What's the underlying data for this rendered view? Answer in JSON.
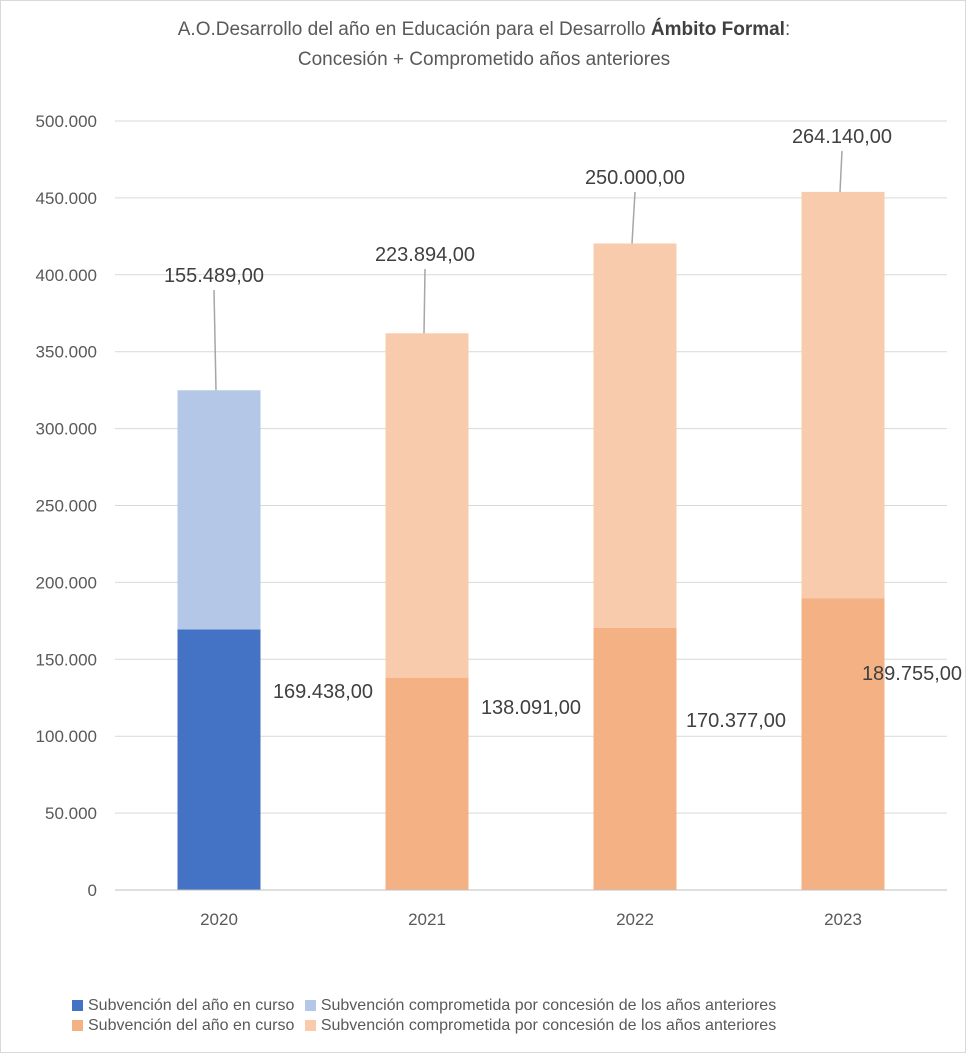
{
  "chart_data": {
    "type": "bar",
    "stacked": true,
    "title_line1_prefix": "A.O.Desarrollo del año en Educación para el Desarrollo ",
    "title_line1_bold": "Ámbito Formal",
    "title_line1_suffix": ":",
    "title_line2": "Concesión + Comprometido años anteriores",
    "categories": [
      "2020",
      "2021",
      "2022",
      "2023"
    ],
    "ylim": [
      0,
      500000
    ],
    "yticks": [
      0,
      50000,
      100000,
      150000,
      200000,
      250000,
      300000,
      350000,
      400000,
      450000,
      500000
    ],
    "ytick_labels": [
      "0",
      "50.000",
      "100.000",
      "150.000",
      "200.000",
      "250.000",
      "300.000",
      "350.000",
      "400.000",
      "450.000",
      "500.000"
    ],
    "grid": true,
    "legend_position": "bottom",
    "series": [
      {
        "name": "Subvención del año en curso",
        "color": "#4472c4",
        "values": [
          169438,
          null,
          null,
          null
        ],
        "labels": [
          "169.438,00",
          "",
          "",
          ""
        ]
      },
      {
        "name": "Subvención comprometida por concesión de los años anteriores",
        "color": "#b4c7e7",
        "values": [
          155489,
          null,
          null,
          null
        ],
        "labels": [
          "155.489,00",
          "",
          "",
          ""
        ]
      },
      {
        "name": "Subvención del año en curso",
        "color": "#f4b183",
        "values": [
          null,
          138091,
          170377,
          189755
        ],
        "labels": [
          "",
          "138.091,00",
          "170.377,00",
          "189.755,00"
        ]
      },
      {
        "name": "Subvención comprometida por concesión de los años anteriores",
        "color": "#f8cbad",
        "values": [
          null,
          223894,
          250000,
          264140
        ],
        "labels": [
          "",
          "223.894,00",
          "250.000,00",
          "264.140,00"
        ]
      }
    ]
  }
}
